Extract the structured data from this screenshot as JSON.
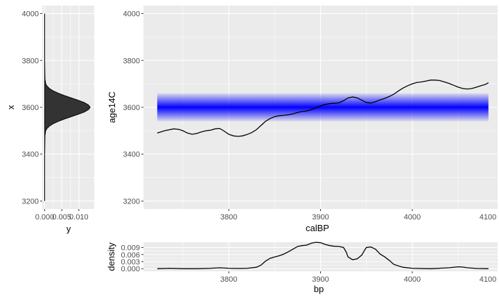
{
  "colors": {
    "panel": "#ebebeb",
    "grid": "#ffffff",
    "band": "#0000ff",
    "density_fill": "#333333",
    "line": "#000000"
  },
  "chart_data": [
    {
      "id": "main",
      "type": "line",
      "xlabel": "calBP",
      "ylabel": "age14C",
      "xlim": [
        3707,
        4093
      ],
      "ylim": [
        3166,
        4034
      ],
      "xticks": [
        3800,
        3900,
        4000,
        4100
      ],
      "yticks": [
        3200,
        3400,
        3600,
        3800,
        4000
      ],
      "grid": true,
      "band": {
        "center": 3600,
        "half_width": 60,
        "x_range": [
          3722,
          4083
        ],
        "color": "#0000ff"
      },
      "series": [
        {
          "x": [
            3722,
            3730,
            3740,
            3745,
            3750,
            3755,
            3760,
            3765,
            3770,
            3775,
            3780,
            3785,
            3790,
            3795,
            3800,
            3805,
            3810,
            3815,
            3820,
            3825,
            3830,
            3835,
            3840,
            3845,
            3850,
            3855,
            3860,
            3865,
            3870,
            3875,
            3880,
            3885,
            3890,
            3895,
            3900,
            3905,
            3910,
            3915,
            3920,
            3925,
            3930,
            3935,
            3940,
            3945,
            3950,
            3955,
            3960,
            3965,
            3970,
            3975,
            3980,
            3985,
            3990,
            3995,
            4000,
            4005,
            4010,
            4015,
            4020,
            4025,
            4030,
            4035,
            4040,
            4045,
            4050,
            4055,
            4060,
            4065,
            4070,
            4075,
            4080,
            4083
          ],
          "y": [
            3490,
            3500,
            3508,
            3506,
            3500,
            3490,
            3485,
            3488,
            3495,
            3500,
            3502,
            3508,
            3510,
            3498,
            3485,
            3478,
            3476,
            3478,
            3484,
            3492,
            3504,
            3522,
            3540,
            3552,
            3560,
            3564,
            3566,
            3568,
            3572,
            3578,
            3582,
            3584,
            3590,
            3598,
            3606,
            3612,
            3616,
            3617,
            3619,
            3628,
            3640,
            3644,
            3640,
            3630,
            3620,
            3618,
            3624,
            3632,
            3638,
            3646,
            3656,
            3670,
            3682,
            3692,
            3700,
            3706,
            3708,
            3712,
            3716,
            3716,
            3714,
            3708,
            3702,
            3694,
            3686,
            3680,
            3678,
            3680,
            3686,
            3692,
            3698,
            3705
          ]
        }
      ]
    },
    {
      "id": "left-density",
      "type": "area",
      "xlabel": "y",
      "ylabel": "x",
      "xlim": [
        -0.0007,
        0.0145
      ],
      "ylim": [
        3166,
        4034
      ],
      "xticks": [
        0.0,
        0.005,
        0.01
      ],
      "xtick_labels": [
        "0.000",
        "0.005",
        "0.010"
      ],
      "yticks": [
        3200,
        3400,
        3600,
        3800,
        4000
      ],
      "grid": true,
      "series": [
        {
          "x": [
            3200,
            3400,
            3480,
            3500,
            3510,
            3520,
            3530,
            3540,
            3550,
            3560,
            3570,
            3580,
            3590,
            3600,
            3610,
            3620,
            3630,
            3640,
            3650,
            3660,
            3670,
            3680,
            3690,
            3700,
            3720,
            3800,
            4000
          ],
          "y": [
            0.0,
            1e-05,
            0.0001,
            0.0003,
            0.0007,
            0.0014,
            0.0025,
            0.004,
            0.0058,
            0.0078,
            0.0098,
            0.0116,
            0.0128,
            0.0133,
            0.0128,
            0.0116,
            0.0098,
            0.0078,
            0.0058,
            0.004,
            0.0025,
            0.0014,
            0.0007,
            0.0003,
            0.0001,
            1e-05,
            0.0
          ]
        }
      ]
    },
    {
      "id": "bottom-density",
      "type": "line",
      "xlabel": "bp",
      "ylabel": "density",
      "xlim": [
        3707,
        4093
      ],
      "ylim": [
        -0.0011,
        0.0112
      ],
      "xticks": [
        3800,
        3900,
        4000,
        4100
      ],
      "yticks": [
        0.0,
        0.003,
        0.006,
        0.009
      ],
      "ytick_labels": [
        "0.000",
        "0.003",
        "0.006",
        "0.009"
      ],
      "grid": true,
      "series": [
        {
          "x": [
            3722,
            3735,
            3750,
            3765,
            3780,
            3790,
            3800,
            3810,
            3820,
            3830,
            3835,
            3840,
            3845,
            3850,
            3855,
            3860,
            3865,
            3870,
            3875,
            3880,
            3885,
            3890,
            3895,
            3900,
            3905,
            3910,
            3915,
            3920,
            3925,
            3928,
            3930,
            3935,
            3940,
            3945,
            3948,
            3950,
            3955,
            3960,
            3965,
            3970,
            3975,
            3980,
            3990,
            4000,
            4020,
            4040,
            4050,
            4055,
            4060,
            4070,
            4083
          ],
          "y": [
            0.0,
            0.0002,
            0.0,
            0.0,
            0.0002,
            0.0004,
            0.0002,
            0.0001,
            0.0002,
            0.0006,
            0.0015,
            0.0032,
            0.0044,
            0.005,
            0.0055,
            0.0062,
            0.0072,
            0.0083,
            0.0094,
            0.0098,
            0.01,
            0.0108,
            0.0112,
            0.011,
            0.0103,
            0.0098,
            0.0095,
            0.0094,
            0.009,
            0.007,
            0.005,
            0.0038,
            0.0042,
            0.0058,
            0.0078,
            0.009,
            0.0092,
            0.0082,
            0.0062,
            0.005,
            0.0035,
            0.0018,
            0.0006,
            0.0002,
            0.0,
            0.0004,
            0.0008,
            0.0007,
            0.0004,
            0.0001,
            0.0
          ]
        }
      ]
    }
  ]
}
